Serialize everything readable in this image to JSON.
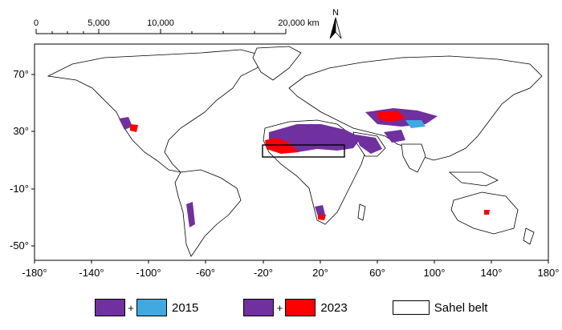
{
  "scale_bar": {
    "labels": [
      "0",
      "5,000",
      "10,000",
      "20,000 km"
    ]
  },
  "north_arrow": {
    "label": "N"
  },
  "axes": {
    "x_ticks": [
      "-180°",
      "-140°",
      "-100°",
      "-60°",
      "-20°",
      "20°",
      "60°",
      "100°",
      "140°",
      "180°"
    ],
    "y_ticks": [
      "70°",
      "30°",
      "-10°",
      "-50°"
    ]
  },
  "colors": {
    "both_years": "#7030a0",
    "only_2015": "#3fa9e0",
    "only_2023": "#ff0000",
    "land_outline": "#000000"
  },
  "legend": {
    "items": [
      {
        "id": "combo-2015",
        "label": "2015"
      },
      {
        "id": "combo-2023",
        "label": "2023"
      },
      {
        "id": "sahel",
        "label": "Sahel belt"
      }
    ],
    "plus": "+"
  }
}
